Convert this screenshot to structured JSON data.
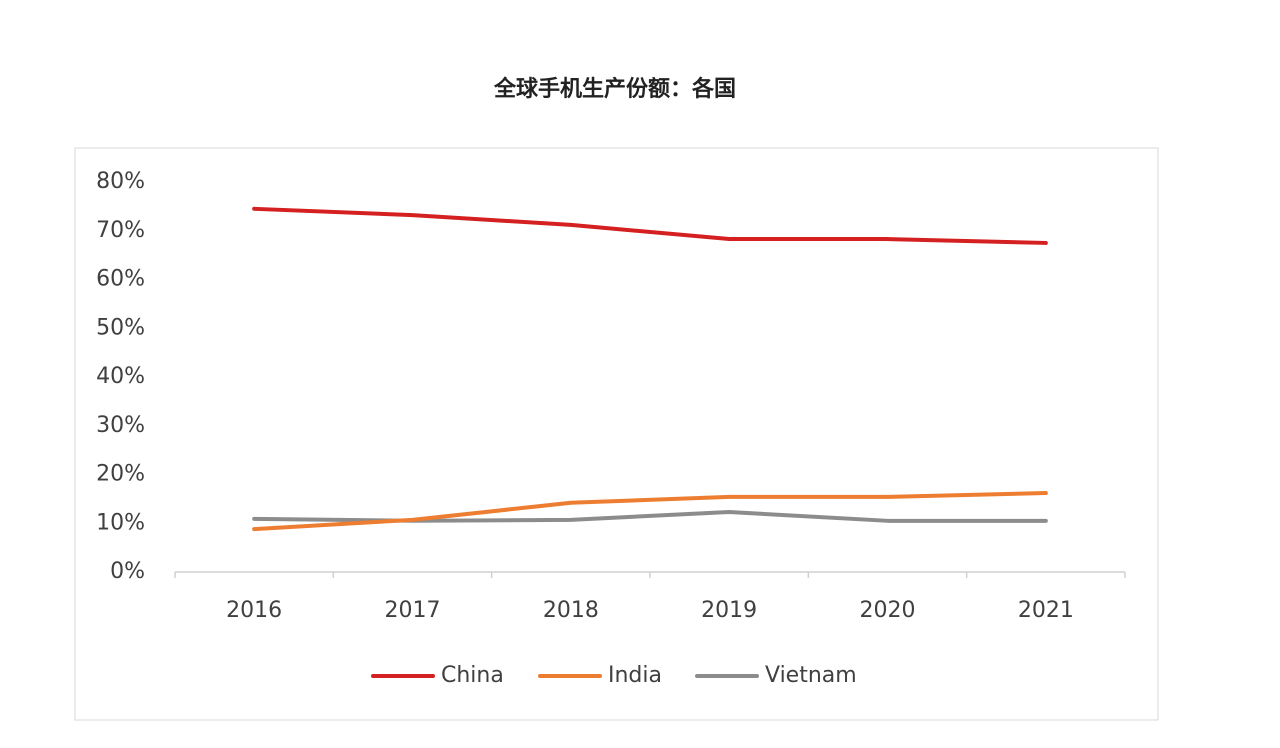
{
  "chart_data": {
    "type": "line",
    "title": "全球手机生产份额：各国",
    "categories": [
      "2016",
      "2017",
      "2018",
      "2019",
      "2020",
      "2021"
    ],
    "series": [
      {
        "name": "China",
        "color": "#d42020",
        "values": [
          74.5,
          73.2,
          71.2,
          68.3,
          68.3,
          67.5
        ]
      },
      {
        "name": "India",
        "color": "#ed7d31",
        "values": [
          8.8,
          10.7,
          14.2,
          15.4,
          15.4,
          16.2
        ]
      },
      {
        "name": "Vietnam",
        "color": "#8c8c8c",
        "values": [
          10.9,
          10.5,
          10.7,
          12.3,
          10.5,
          10.5
        ]
      }
    ],
    "ylim": [
      0,
      80
    ],
    "yticks": [
      {
        "value": 0,
        "label": "0%"
      },
      {
        "value": 10,
        "label": "10%"
      },
      {
        "value": 20,
        "label": "20%"
      },
      {
        "value": 30,
        "label": "30%"
      },
      {
        "value": 40,
        "label": "40%"
      },
      {
        "value": 50,
        "label": "50%"
      },
      {
        "value": 60,
        "label": "60%"
      },
      {
        "value": 70,
        "label": "70%"
      },
      {
        "value": 80,
        "label": "80%"
      }
    ],
    "grid": false,
    "legend": "bottom"
  }
}
